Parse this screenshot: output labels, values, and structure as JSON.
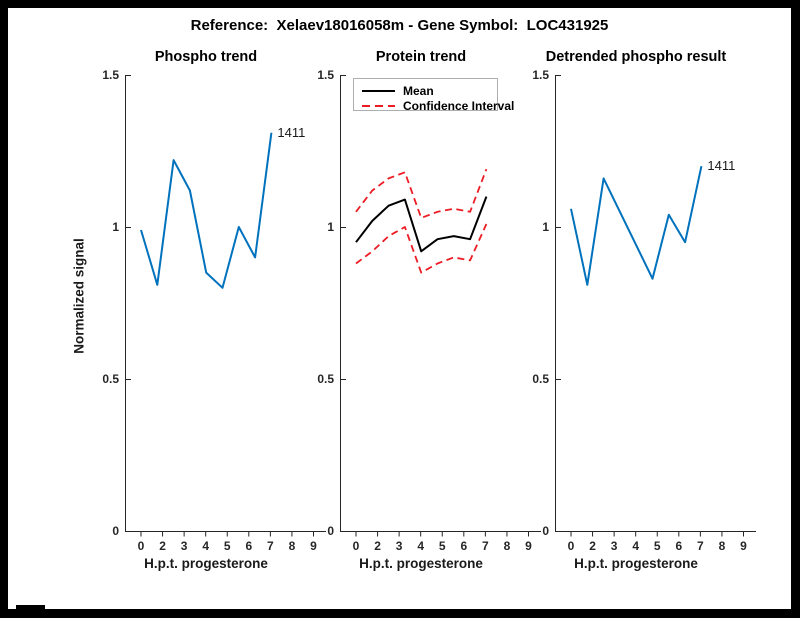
{
  "figure_title": "Reference:  Xelaev18016058m - Gene Symbol:  LOC431925",
  "x_axis": {
    "label": "H.p.t. progesterone",
    "ticks": [
      "0",
      "2",
      "3",
      "4",
      "5",
      "6",
      "7",
      "8",
      "9"
    ]
  },
  "y_axis": {
    "label": "Normalized signal",
    "ticks": [
      "0",
      "0.5",
      "1",
      "1.5"
    ],
    "tick_values": [
      0,
      0.5,
      1,
      1.5
    ],
    "ylim": [
      0,
      1.5
    ]
  },
  "legend": {
    "items": [
      {
        "label": "Mean",
        "color": "#000000",
        "style": "solid"
      },
      {
        "label": "Confidence Interval",
        "color": "#ed1c24",
        "style": "dashed"
      }
    ]
  },
  "colors": {
    "line_blue": "#0072BD",
    "line_black": "#000000",
    "line_red": "#ed1c24",
    "axis": "#262626"
  },
  "chart_data": [
    {
      "type": "line",
      "title": "Phospho trend",
      "xlabel": "H.p.t. progesterone",
      "ylabel": "Normalized signal",
      "x_ticklabels": [
        "0",
        "2",
        "3",
        "4",
        "5",
        "6",
        "7",
        "8",
        "9"
      ],
      "ylim": [
        0,
        1.5
      ],
      "grid": false,
      "end_label": "1411",
      "series": [
        {
          "name": "1411",
          "color": "#0072BD",
          "dash": "solid",
          "width": 2,
          "values": [
            0.99,
            0.81,
            1.22,
            1.12,
            0.85,
            0.8,
            1.0,
            0.9,
            1.31
          ]
        }
      ]
    },
    {
      "type": "line",
      "title": "Protein trend",
      "xlabel": "H.p.t. progesterone",
      "x_ticklabels": [
        "0",
        "2",
        "3",
        "4",
        "5",
        "6",
        "7",
        "8",
        "9"
      ],
      "ylim": [
        0,
        1.5
      ],
      "grid": false,
      "legend_position": "top-left",
      "series": [
        {
          "name": "Mean",
          "color": "#000000",
          "dash": "solid",
          "width": 2,
          "values": [
            0.95,
            1.02,
            1.07,
            1.09,
            0.92,
            0.96,
            0.97,
            0.96,
            1.1
          ]
        },
        {
          "name": "Confidence Interval upper",
          "color": "#ed1c24",
          "dash": "dashed",
          "width": 1.8,
          "values": [
            1.05,
            1.12,
            1.16,
            1.18,
            1.03,
            1.05,
            1.06,
            1.05,
            1.19
          ]
        },
        {
          "name": "Confidence Interval lower",
          "color": "#ed1c24",
          "dash": "dashed",
          "width": 1.8,
          "values": [
            0.88,
            0.92,
            0.97,
            1.0,
            0.85,
            0.88,
            0.9,
            0.89,
            1.01
          ]
        }
      ]
    },
    {
      "type": "line",
      "title": "Detrended phospho result",
      "xlabel": "H.p.t. progesterone",
      "x_ticklabels": [
        "0",
        "2",
        "3",
        "4",
        "5",
        "6",
        "7",
        "8",
        "9"
      ],
      "ylim": [
        0,
        1.5
      ],
      "grid": false,
      "end_label": "1411",
      "series": [
        {
          "name": "1411",
          "color": "#0072BD",
          "dash": "solid",
          "width": 2,
          "values": [
            1.06,
            0.81,
            1.16,
            1.05,
            0.94,
            0.83,
            1.04,
            0.95,
            1.2
          ]
        }
      ]
    }
  ]
}
